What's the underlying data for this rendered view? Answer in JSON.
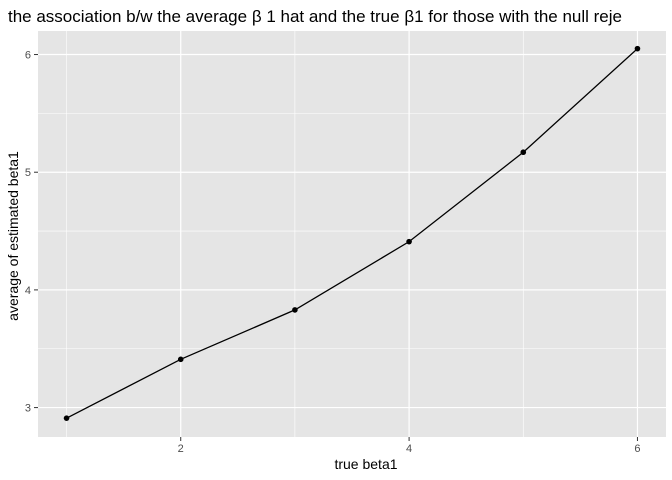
{
  "chart_data": {
    "type": "line",
    "title": "the association b/w the average β 1 hat and the true β1 for those with the null reje",
    "xlabel": "true beta1",
    "ylabel": "average of estimated beta1",
    "x": [
      1,
      2,
      3,
      4,
      5,
      6
    ],
    "series": [
      {
        "values": [
          2.91,
          3.41,
          3.83,
          4.41,
          5.17,
          6.05
        ]
      }
    ],
    "xlim": [
      0.75,
      6.25
    ],
    "ylim": [
      2.75,
      6.2
    ],
    "x_ticks": [
      2,
      4,
      6
    ],
    "x_tick_labels": [
      "2",
      "4",
      "6"
    ],
    "y_ticks": [
      3,
      4,
      5,
      6
    ],
    "y_tick_labels": [
      "3",
      "4",
      "5",
      "6"
    ],
    "grid": true,
    "legend": "none",
    "colors": {
      "panel_background": "#e5e5e5",
      "grid_major": "#ffffff",
      "line": "#000000",
      "point": "#000000",
      "tick_label": "#4d4d4d"
    }
  }
}
